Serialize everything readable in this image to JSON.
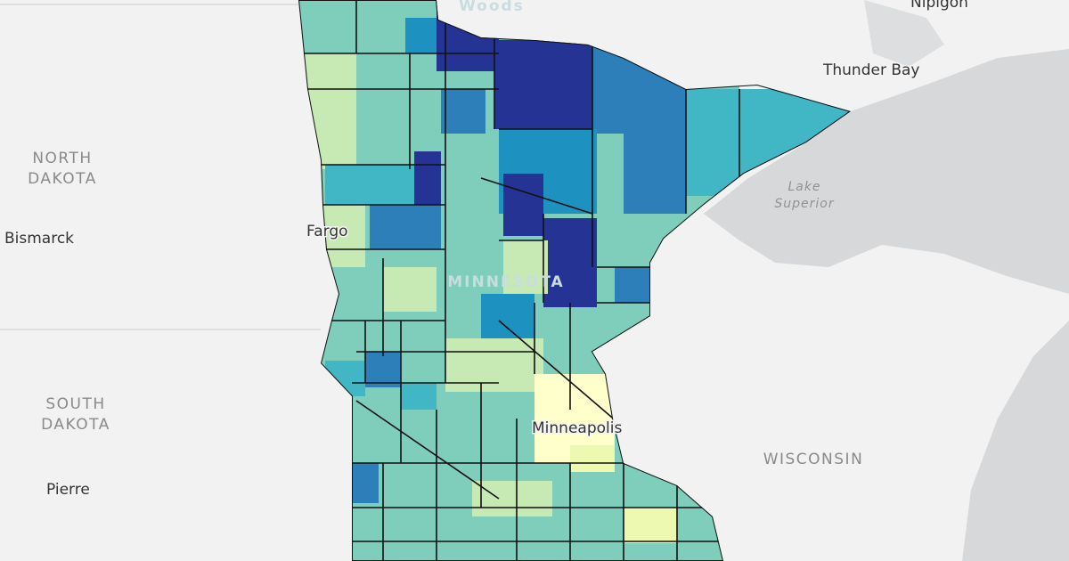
{
  "labels": {
    "woods": "Woods",
    "nipigon": "Nipigon",
    "thunder_bay": "Thunder Bay",
    "north_dakota": [
      "NORTH",
      "DAKOTA"
    ],
    "bismarck": "Bismarck",
    "fargo": "Fargo",
    "minnesota": "MINNESOTA",
    "lake_superior": [
      "Lake",
      "Superior"
    ],
    "south_dakota": [
      "SOUTH",
      "DAKOTA"
    ],
    "pierre": "Pierre",
    "minneapolis": "Minneapolis",
    "wisconsin": "WISCONSIN"
  }
}
